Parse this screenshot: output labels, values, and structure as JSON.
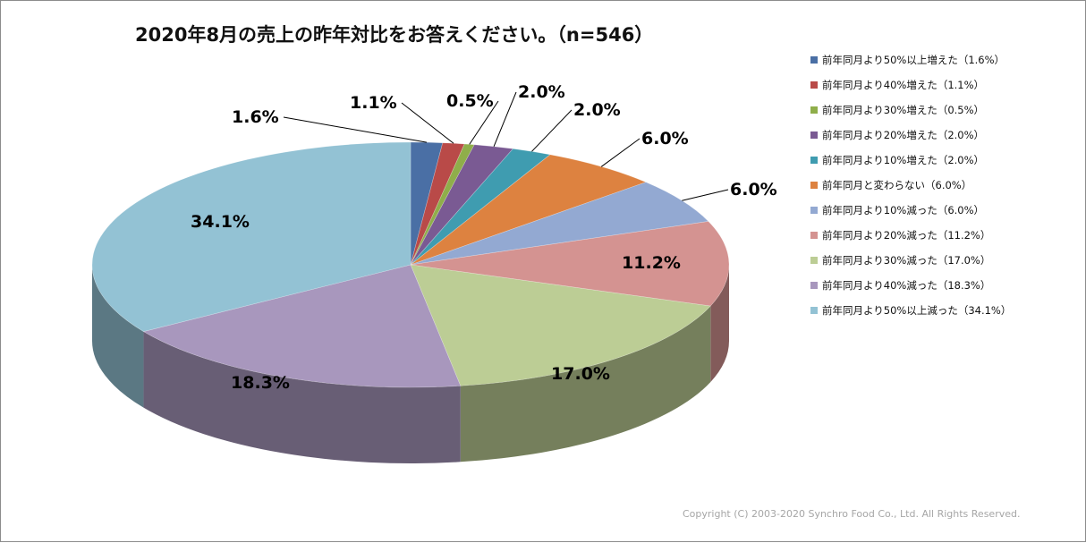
{
  "chart_data": {
    "type": "pie",
    "title": "2020年8月の売上の昨年対比をお答えください。（n=546）",
    "categories": [
      "前年同月より50%以上増えた（1.6%）",
      "前年同月より40%増えた（1.1%）",
      "前年同月より30%増えた（0.5%）",
      "前年同月より20%増えた（2.0%）",
      "前年同月より10%増えた（2.0%）",
      "前年同月と変わらない（6.0%）",
      "前年同月より10%減った（6.0%）",
      "前年同月より20%減った（11.2%）",
      "前年同月より30%減った（17.0%）",
      "前年同月より40%減った（18.3%）",
      "前年同月より50%以上減った（34.1%）"
    ],
    "values": [
      1.6,
      1.1,
      0.5,
      2.0,
      2.0,
      6.0,
      6.0,
      11.2,
      17.0,
      18.3,
      34.1
    ],
    "value_labels": [
      "1.6%",
      "1.1%",
      "0.5%",
      "2.0%",
      "2.0%",
      "6.0%",
      "6.0%",
      "11.2%",
      "17.0%",
      "18.3%",
      "34.1%"
    ],
    "colors": [
      "#4a6fa5",
      "#b94a48",
      "#8fae4a",
      "#7a5a93",
      "#3f9cb0",
      "#dd8240",
      "#93a9d2",
      "#d49391",
      "#bccd95",
      "#a897bd",
      "#93c2d4"
    ],
    "legend_position": "right",
    "style": "3d-pie"
  },
  "copyright": "Copyright (C) 2003-2020   Synchro Food Co., Ltd. All Rights Reserved."
}
